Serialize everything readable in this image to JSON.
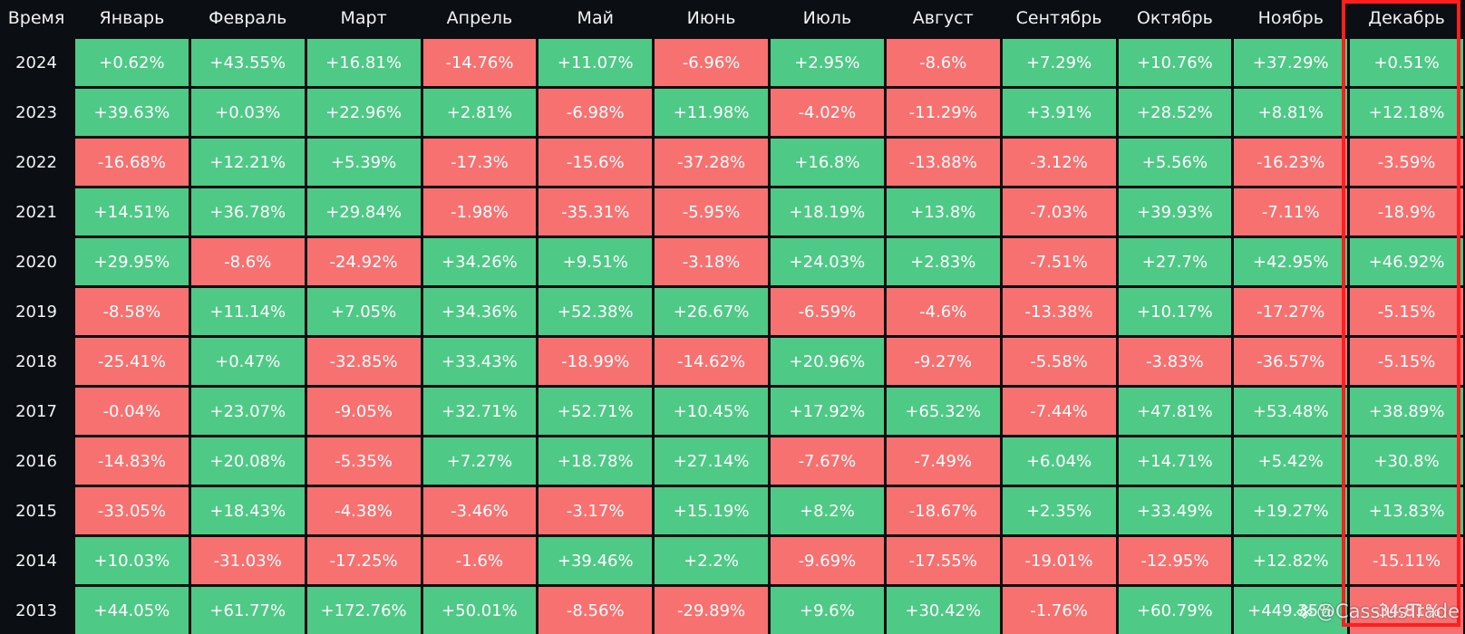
{
  "chart_data": {
    "type": "table",
    "header_label": "Время",
    "columns": [
      "Январь",
      "Февраль",
      "Март",
      "Апрель",
      "Май",
      "Июнь",
      "Июль",
      "Август",
      "Сентябрь",
      "Октябрь",
      "Ноябрь",
      "Декабрь"
    ],
    "rows": [
      {
        "year": "2024",
        "values": [
          "+0.62%",
          "+43.55%",
          "+16.81%",
          "-14.76%",
          "+11.07%",
          "-6.96%",
          "+2.95%",
          "-8.6%",
          "+7.29%",
          "+10.76%",
          "+37.29%",
          "+0.51%"
        ]
      },
      {
        "year": "2023",
        "values": [
          "+39.63%",
          "+0.03%",
          "+22.96%",
          "+2.81%",
          "-6.98%",
          "+11.98%",
          "-4.02%",
          "-11.29%",
          "+3.91%",
          "+28.52%",
          "+8.81%",
          "+12.18%"
        ]
      },
      {
        "year": "2022",
        "values": [
          "-16.68%",
          "+12.21%",
          "+5.39%",
          "-17.3%",
          "-15.6%",
          "-37.28%",
          "+16.8%",
          "-13.88%",
          "-3.12%",
          "+5.56%",
          "-16.23%",
          "-3.59%"
        ]
      },
      {
        "year": "2021",
        "values": [
          "+14.51%",
          "+36.78%",
          "+29.84%",
          "-1.98%",
          "-35.31%",
          "-5.95%",
          "+18.19%",
          "+13.8%",
          "-7.03%",
          "+39.93%",
          "-7.11%",
          "-18.9%"
        ]
      },
      {
        "year": "2020",
        "values": [
          "+29.95%",
          "-8.6%",
          "-24.92%",
          "+34.26%",
          "+9.51%",
          "-3.18%",
          "+24.03%",
          "+2.83%",
          "-7.51%",
          "+27.7%",
          "+42.95%",
          "+46.92%"
        ]
      },
      {
        "year": "2019",
        "values": [
          "-8.58%",
          "+11.14%",
          "+7.05%",
          "+34.36%",
          "+52.38%",
          "+26.67%",
          "-6.59%",
          "-4.6%",
          "-13.38%",
          "+10.17%",
          "-17.27%",
          "-5.15%"
        ]
      },
      {
        "year": "2018",
        "values": [
          "-25.41%",
          "+0.47%",
          "-32.85%",
          "+33.43%",
          "-18.99%",
          "-14.62%",
          "+20.96%",
          "-9.27%",
          "-5.58%",
          "-3.83%",
          "-36.57%",
          "-5.15%"
        ]
      },
      {
        "year": "2017",
        "values": [
          "-0.04%",
          "+23.07%",
          "-9.05%",
          "+32.71%",
          "+52.71%",
          "+10.45%",
          "+17.92%",
          "+65.32%",
          "-7.44%",
          "+47.81%",
          "+53.48%",
          "+38.89%"
        ]
      },
      {
        "year": "2016",
        "values": [
          "-14.83%",
          "+20.08%",
          "-5.35%",
          "+7.27%",
          "+18.78%",
          "+27.14%",
          "-7.67%",
          "-7.49%",
          "+6.04%",
          "+14.71%",
          "+5.42%",
          "+30.8%"
        ]
      },
      {
        "year": "2015",
        "values": [
          "-33.05%",
          "+18.43%",
          "-4.38%",
          "-3.46%",
          "-3.17%",
          "+15.19%",
          "+8.2%",
          "-18.67%",
          "+2.35%",
          "+33.49%",
          "+19.27%",
          "+13.83%"
        ]
      },
      {
        "year": "2014",
        "values": [
          "+10.03%",
          "-31.03%",
          "-17.25%",
          "-1.6%",
          "+39.46%",
          "+2.2%",
          "-9.69%",
          "-17.55%",
          "-19.01%",
          "-12.95%",
          "+12.82%",
          "-15.11%"
        ]
      },
      {
        "year": "2013",
        "values": [
          "+44.05%",
          "+61.77%",
          "+172.76%",
          "+50.01%",
          "-8.56%",
          "-29.89%",
          "+9.6%",
          "+30.42%",
          "-1.76%",
          "+60.79%",
          "+449.35%",
          "-34.81%"
        ]
      }
    ],
    "highlighted_column": "Декабрь"
  },
  "colors": {
    "positive": "#4fc986",
    "negative": "#f77171",
    "background": "#0b0e13",
    "highlight_border": "#ff1f1f"
  },
  "watermark": {
    "text": "@CassiusTrade",
    "icon": "binance-square-icon"
  }
}
